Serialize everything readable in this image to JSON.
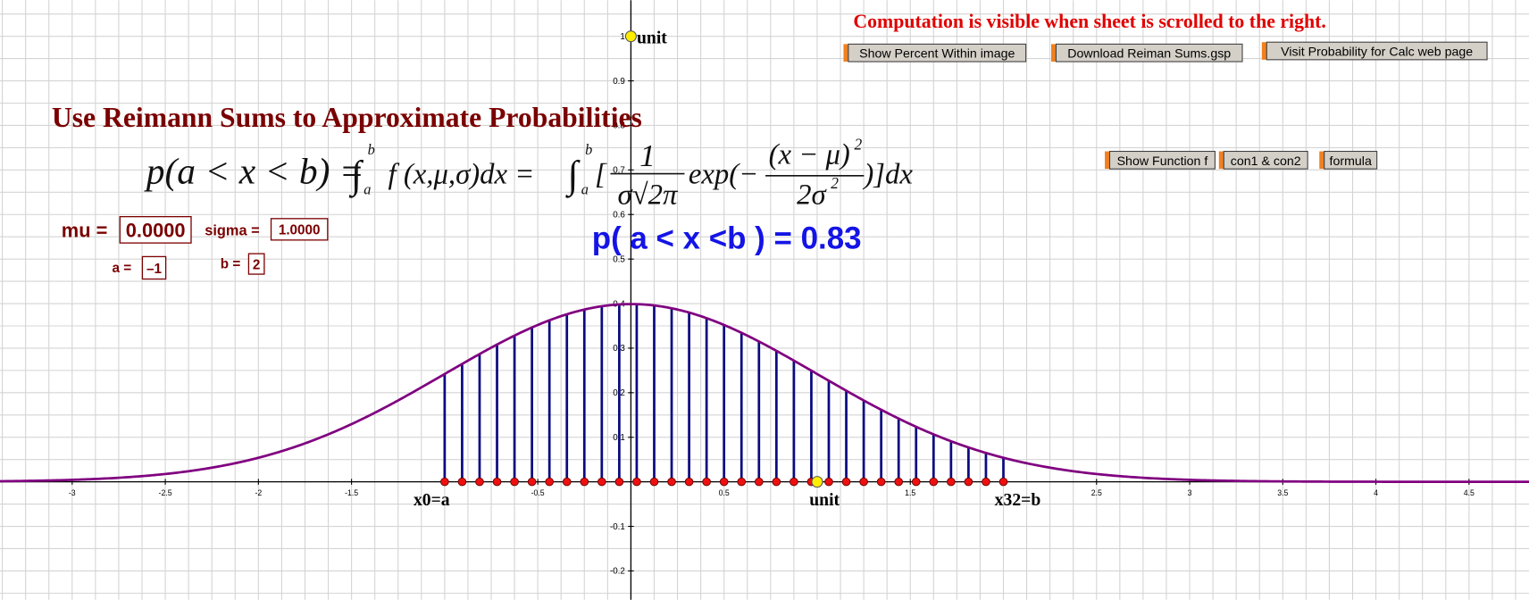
{
  "header": {
    "notice": "Computation is visible when sheet is scrolled to the right.",
    "title": "Use Reimann Sums to Approximate Probabilities"
  },
  "buttons": [
    "Show Percent Within image",
    "Download Reiman Sums.gsp",
    "Visit Probability for Calc web page",
    "Show Function f",
    "con1 & con2",
    "formula"
  ],
  "formula": {
    "lhs": "p(a < x < b) =",
    "integral": "∫",
    "lower": "a",
    "upper": "b",
    "integrand": "f (x,μ,σ)dx =",
    "bracket": "[",
    "numerator": "1",
    "denominator": "σ√2π",
    "exp": "exp(−",
    "exp_numerator": "(x − μ)",
    "exp_denominator": "2σ",
    "power": "2",
    "close": ")]dx"
  },
  "parameters": {
    "mu_label": "mu =",
    "mu": "0.0000",
    "sigma_label": "sigma =",
    "sigma": "1.0000",
    "a_label": "a =",
    "a": "–1",
    "b_label": "b =",
    "b": "2"
  },
  "result": "p( a < x <b ) = 0.83",
  "point_labels": {
    "unit_y": "unit",
    "unit_x": "unit",
    "start": "x0=a",
    "end": "x32=b"
  },
  "axes": {
    "xticks": [
      -3,
      -2.5,
      -2,
      -1.5,
      -0.5,
      0.5,
      1.5,
      2.5,
      3,
      3.5,
      4,
      4.5
    ],
    "yticks": [
      1,
      0.9,
      0.8,
      0.7,
      0.6,
      0.5,
      0.4,
      0.3,
      0.2,
      0.1,
      -0.1,
      -0.2
    ]
  }
}
